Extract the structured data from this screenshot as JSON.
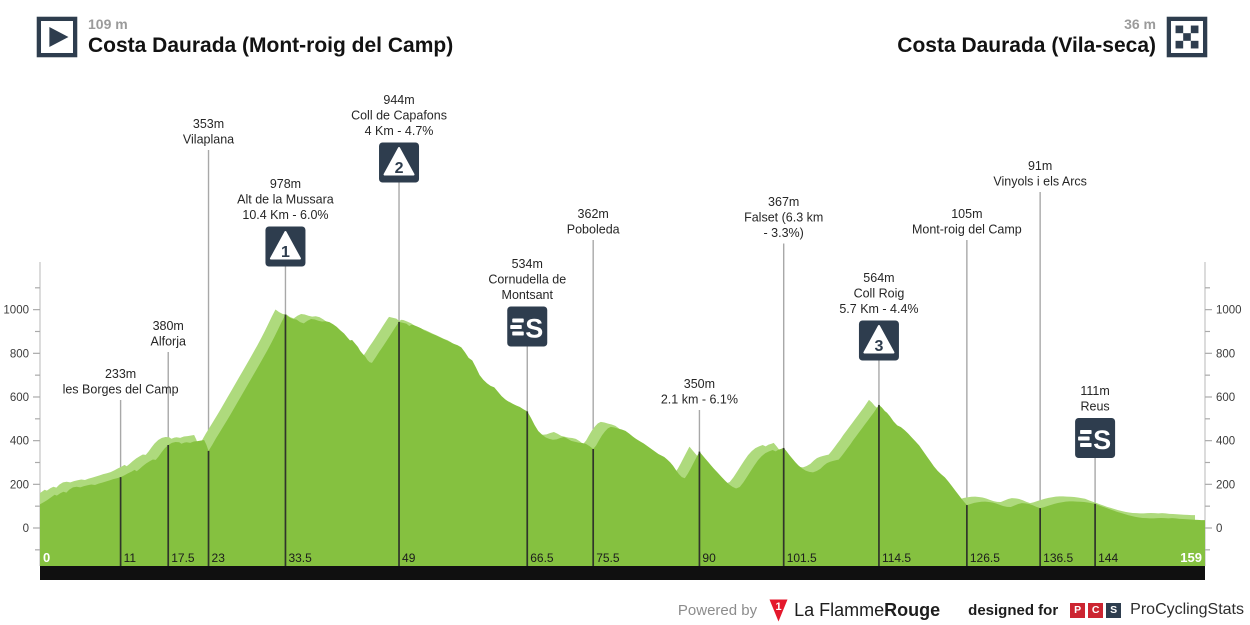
{
  "header": {
    "start": {
      "elevation": "109 m",
      "name": "Costa Daurada (Mont-roig del Camp)"
    },
    "finish": {
      "elevation": "36 m",
      "name": "Costa Daurada (Vila-seca)"
    }
  },
  "footer": {
    "powered_by": "Powered by",
    "lfr_mark": "1",
    "lfr_regular": "La Flamme",
    "lfr_bold": "Rouge",
    "designed_for": "designed for",
    "pcs_letters": [
      "P",
      "C",
      "S"
    ],
    "pcs_name": "ProCyclingStats"
  },
  "colors": {
    "profile_main": "#85c140",
    "profile_light": "#aeda7d",
    "icon_bg": "#2e3d4e",
    "marker_line": "#a8a8a8",
    "marker_line_dark": "#30352a",
    "axis_line": "#c8c8c8",
    "axis_tick": "#aaaaaa",
    "axis_text": "#3c3c3c",
    "label_text": "#262626",
    "base_bar": "#101010",
    "x_label": "#1c1c1c",
    "x_label_emph": "#ffffff",
    "lfr_red": "#e4182c",
    "pcs_red": "#cc2531",
    "pcs_navy": "#2e3d4e"
  },
  "chart_data": {
    "type": "area",
    "title": "Stage elevation profile",
    "x_unit": "km",
    "y_unit": "m",
    "xlim": [
      0,
      159
    ],
    "grid": false,
    "y_ticks": [
      0,
      200,
      400,
      600,
      800,
      1000
    ],
    "x_ticks": [
      {
        "km": 0,
        "label": "0",
        "emph": true
      },
      {
        "km": 11,
        "label": "11"
      },
      {
        "km": 17.5,
        "label": "17.5"
      },
      {
        "km": 23,
        "label": "23"
      },
      {
        "km": 33.5,
        "label": "33.5"
      },
      {
        "km": 49,
        "label": "49"
      },
      {
        "km": 66.5,
        "label": "66.5"
      },
      {
        "km": 75.5,
        "label": "75.5"
      },
      {
        "km": 90,
        "label": "90"
      },
      {
        "km": 101.5,
        "label": "101.5"
      },
      {
        "km": 114.5,
        "label": "114.5"
      },
      {
        "km": 126.5,
        "label": "126.5"
      },
      {
        "km": 136.5,
        "label": "136.5"
      },
      {
        "km": 144,
        "label": "144"
      },
      {
        "km": 159,
        "label": "159",
        "emph": true,
        "align": "right"
      }
    ],
    "markers": [
      {
        "km": 11,
        "elevation": 233,
        "lines": [
          "233m",
          "les Borges del Camp"
        ],
        "icon": null,
        "label_y": 366
      },
      {
        "km": 17.5,
        "elevation": 380,
        "lines": [
          "380m",
          "Alforja"
        ],
        "icon": null,
        "label_y": 318
      },
      {
        "km": 23,
        "elevation": 353,
        "lines": [
          "353m",
          "Vilaplana"
        ],
        "icon": null,
        "label_y": 116
      },
      {
        "km": 33.5,
        "elevation": 978,
        "lines": [
          "978m",
          "Alt de la Mussara",
          "10.4 Km - 6.0%"
        ],
        "icon": "cat1",
        "label_y": 176
      },
      {
        "km": 49,
        "elevation": 944,
        "lines": [
          "944m",
          "Coll de Capafons",
          "4 Km - 4.7%"
        ],
        "icon": "cat2",
        "label_y": 92
      },
      {
        "km": 66.5,
        "elevation": 534,
        "lines": [
          "534m",
          "Cornudella de",
          "Montsant"
        ],
        "icon": "sprint",
        "label_y": 256
      },
      {
        "km": 75.5,
        "elevation": 362,
        "lines": [
          "362m",
          "Poboleda"
        ],
        "icon": null,
        "label_y": 206
      },
      {
        "km": 90,
        "elevation": 350,
        "lines": [
          "350m",
          "2.1 km - 6.1%"
        ],
        "icon": null,
        "label_y": 376
      },
      {
        "km": 101.5,
        "elevation": 367,
        "lines": [
          "367m",
          "Falset (6.3 km",
          "- 3.3%)"
        ],
        "icon": null,
        "label_y": 194
      },
      {
        "km": 114.5,
        "elevation": 564,
        "lines": [
          "564m",
          "Coll Roig",
          "5.7 Km - 4.4%"
        ],
        "icon": "cat3",
        "label_y": 270
      },
      {
        "km": 126.5,
        "elevation": 105,
        "lines": [
          "105m",
          "Mont-roig del Camp"
        ],
        "icon": null,
        "label_y": 206
      },
      {
        "km": 136.5,
        "elevation": 91,
        "lines": [
          "91m",
          "Vinyols i els Arcs"
        ],
        "icon": null,
        "label_y": 158
      },
      {
        "km": 144,
        "elevation": 111,
        "lines": [
          "111m",
          "Reus"
        ],
        "icon": "sprint",
        "label_y": 383
      }
    ],
    "profile": [
      [
        0,
        109
      ],
      [
        0.5,
        118
      ],
      [
        1,
        128
      ],
      [
        1.5,
        140
      ],
      [
        2,
        152
      ],
      [
        2.3,
        148
      ],
      [
        2.8,
        160
      ],
      [
        3.2,
        166
      ],
      [
        3.6,
        162
      ],
      [
        4,
        176
      ],
      [
        4.5,
        186
      ],
      [
        5,
        189
      ],
      [
        5.5,
        186
      ],
      [
        6,
        192
      ],
      [
        6.5,
        196
      ],
      [
        7,
        199
      ],
      [
        7.5,
        197
      ],
      [
        8,
        203
      ],
      [
        8.5,
        208
      ],
      [
        9,
        213
      ],
      [
        9.5,
        218
      ],
      [
        10,
        224
      ],
      [
        10.5,
        228
      ],
      [
        11,
        233
      ],
      [
        11.5,
        241
      ],
      [
        12,
        250
      ],
      [
        12.5,
        258
      ],
      [
        12.9,
        266
      ],
      [
        13.2,
        260
      ],
      [
        13.6,
        271
      ],
      [
        14,
        283
      ],
      [
        14.5,
        296
      ],
      [
        15,
        306
      ],
      [
        15.4,
        314
      ],
      [
        15.8,
        312
      ],
      [
        16.2,
        328
      ],
      [
        16.6,
        347
      ],
      [
        17,
        364
      ],
      [
        17.5,
        380
      ],
      [
        18,
        390
      ],
      [
        18.5,
        394
      ],
      [
        19,
        393
      ],
      [
        19.3,
        386
      ],
      [
        19.7,
        391
      ],
      [
        20,
        393
      ],
      [
        20.5,
        390
      ],
      [
        21,
        396
      ],
      [
        21.5,
        398
      ],
      [
        22,
        401
      ],
      [
        22.4,
        403
      ],
      [
        22.7,
        382
      ],
      [
        23,
        353
      ],
      [
        23.5,
        380
      ],
      [
        24,
        410
      ],
      [
        24.5,
        437
      ],
      [
        25,
        464
      ],
      [
        25.5,
        492
      ],
      [
        26,
        520
      ],
      [
        26.5,
        549
      ],
      [
        27,
        578
      ],
      [
        27.5,
        607
      ],
      [
        28,
        636
      ],
      [
        28.5,
        665
      ],
      [
        29,
        694
      ],
      [
        29.5,
        723
      ],
      [
        30,
        752
      ],
      [
        30.5,
        782
      ],
      [
        31,
        812
      ],
      [
        31.5,
        843
      ],
      [
        32,
        876
      ],
      [
        32.5,
        910
      ],
      [
        33,
        945
      ],
      [
        33.5,
        978
      ],
      [
        34,
        966
      ],
      [
        34.5,
        957
      ],
      [
        35,
        955
      ],
      [
        35.5,
        943
      ],
      [
        36,
        937
      ],
      [
        36.5,
        949
      ],
      [
        37,
        957
      ],
      [
        37.5,
        955
      ],
      [
        38,
        949
      ],
      [
        38.5,
        945
      ],
      [
        39,
        947
      ],
      [
        39.5,
        943
      ],
      [
        40,
        933
      ],
      [
        40.5,
        921
      ],
      [
        41,
        905
      ],
      [
        41.5,
        891
      ],
      [
        42,
        871
      ],
      [
        42.3,
        859
      ],
      [
        42.6,
        861
      ],
      [
        43,
        845
      ],
      [
        43.4,
        829
      ],
      [
        43.7,
        811
      ],
      [
        44,
        799
      ],
      [
        44.4,
        785
      ],
      [
        44.7,
        769
      ],
      [
        45,
        759
      ],
      [
        45.3,
        756
      ],
      [
        45.8,
        781
      ],
      [
        46.3,
        807
      ],
      [
        46.8,
        831
      ],
      [
        47.3,
        857
      ],
      [
        47.8,
        883
      ],
      [
        48.3,
        909
      ],
      [
        48.8,
        935
      ],
      [
        49,
        944
      ],
      [
        49.5,
        940
      ],
      [
        50,
        936
      ],
      [
        50.4,
        925
      ],
      [
        50.7,
        931
      ],
      [
        51,
        929
      ],
      [
        51.5,
        922
      ],
      [
        52,
        915
      ],
      [
        52.5,
        904
      ],
      [
        53,
        897
      ],
      [
        53.5,
        889
      ],
      [
        54,
        883
      ],
      [
        54.5,
        875
      ],
      [
        55,
        867
      ],
      [
        55.5,
        859
      ],
      [
        56,
        851
      ],
      [
        56.5,
        843
      ],
      [
        57,
        837
      ],
      [
        57.5,
        827
      ],
      [
        58,
        805
      ],
      [
        58.5,
        779
      ],
      [
        59,
        767
      ],
      [
        59.5,
        735
      ],
      [
        60,
        700
      ],
      [
        60.5,
        679
      ],
      [
        61,
        663
      ],
      [
        61.5,
        651
      ],
      [
        62,
        644
      ],
      [
        62.5,
        624
      ],
      [
        63,
        604
      ],
      [
        63.5,
        589
      ],
      [
        64,
        577
      ],
      [
        64.5,
        569
      ],
      [
        65,
        561
      ],
      [
        65.5,
        554
      ],
      [
        66,
        543
      ],
      [
        66.5,
        534
      ],
      [
        67,
        505
      ],
      [
        67.5,
        472
      ],
      [
        68,
        444
      ],
      [
        68.5,
        428
      ],
      [
        69,
        415
      ],
      [
        69.5,
        408
      ],
      [
        70,
        404
      ],
      [
        70.5,
        406
      ],
      [
        71,
        412
      ],
      [
        71.5,
        417
      ],
      [
        72,
        409
      ],
      [
        72.5,
        399
      ],
      [
        73,
        395
      ],
      [
        73.5,
        391
      ],
      [
        74,
        389
      ],
      [
        74.5,
        385
      ],
      [
        75,
        375
      ],
      [
        75.5,
        362
      ],
      [
        75.9,
        378
      ],
      [
        76.3,
        402
      ],
      [
        76.7,
        424
      ],
      [
        77.1,
        442
      ],
      [
        77.5,
        456
      ],
      [
        77.9,
        463
      ],
      [
        78.4,
        460
      ],
      [
        78.9,
        455
      ],
      [
        79.4,
        451
      ],
      [
        79.9,
        445
      ],
      [
        80.4,
        433
      ],
      [
        80.9,
        419
      ],
      [
        81.4,
        407
      ],
      [
        81.9,
        397
      ],
      [
        82.4,
        387
      ],
      [
        82.9,
        375
      ],
      [
        83.4,
        363
      ],
      [
        83.9,
        351
      ],
      [
        84.4,
        339
      ],
      [
        84.8,
        332
      ],
      [
        85.2,
        325
      ],
      [
        85.6,
        314
      ],
      [
        86,
        301
      ],
      [
        86.4,
        285
      ],
      [
        86.8,
        265
      ],
      [
        87.2,
        247
      ],
      [
        87.6,
        233
      ],
      [
        88,
        228
      ],
      [
        88.4,
        248
      ],
      [
        88.8,
        272
      ],
      [
        89.2,
        298
      ],
      [
        89.6,
        324
      ],
      [
        90,
        350
      ],
      [
        90.4,
        334
      ],
      [
        90.8,
        318
      ],
      [
        91.2,
        302
      ],
      [
        91.6,
        286
      ],
      [
        92,
        271
      ],
      [
        92.5,
        253
      ],
      [
        93,
        235
      ],
      [
        93.5,
        217
      ],
      [
        94,
        201
      ],
      [
        94.5,
        189
      ],
      [
        95,
        181
      ],
      [
        95.5,
        188
      ],
      [
        96,
        209
      ],
      [
        96.5,
        235
      ],
      [
        97,
        261
      ],
      [
        97.5,
        287
      ],
      [
        98,
        311
      ],
      [
        98.5,
        329
      ],
      [
        99,
        343
      ],
      [
        99.5,
        351
      ],
      [
        100,
        357
      ],
      [
        100.4,
        351
      ],
      [
        100.8,
        359
      ],
      [
        101.2,
        363
      ],
      [
        101.5,
        367
      ],
      [
        101.9,
        351
      ],
      [
        102.3,
        333
      ],
      [
        102.7,
        317
      ],
      [
        103.1,
        301
      ],
      [
        103.5,
        287
      ],
      [
        104,
        273
      ],
      [
        104.5,
        263
      ],
      [
        105,
        257
      ],
      [
        105.5,
        255
      ],
      [
        106,
        261
      ],
      [
        106.5,
        271
      ],
      [
        107,
        287
      ],
      [
        107.4,
        297
      ],
      [
        107.8,
        303
      ],
      [
        108.2,
        307
      ],
      [
        108.6,
        310
      ],
      [
        109,
        313
      ],
      [
        109.4,
        329
      ],
      [
        109.8,
        347
      ],
      [
        110.2,
        365
      ],
      [
        110.6,
        383
      ],
      [
        111,
        403
      ],
      [
        111.4,
        421
      ],
      [
        111.8,
        439
      ],
      [
        112.2,
        457
      ],
      [
        112.6,
        475
      ],
      [
        113,
        493
      ],
      [
        113.4,
        511
      ],
      [
        113.8,
        529
      ],
      [
        114.2,
        549
      ],
      [
        114.5,
        564
      ],
      [
        114.9,
        552
      ],
      [
        115.3,
        536
      ],
      [
        115.6,
        528
      ],
      [
        116,
        512
      ],
      [
        116.5,
        488
      ],
      [
        117,
        470
      ],
      [
        117.5,
        462
      ],
      [
        118,
        448
      ],
      [
        118.5,
        432
      ],
      [
        119,
        414
      ],
      [
        119.5,
        396
      ],
      [
        120,
        378
      ],
      [
        120.5,
        354
      ],
      [
        121,
        330
      ],
      [
        121.5,
        306
      ],
      [
        122,
        282
      ],
      [
        122.5,
        262
      ],
      [
        123,
        246
      ],
      [
        123.5,
        232
      ],
      [
        124,
        212
      ],
      [
        124.5,
        190
      ],
      [
        125,
        168
      ],
      [
        125.5,
        146
      ],
      [
        126,
        124
      ],
      [
        126.5,
        105
      ],
      [
        127,
        110
      ],
      [
        127.5,
        115
      ],
      [
        128,
        118
      ],
      [
        128.5,
        120
      ],
      [
        129,
        121
      ],
      [
        129.5,
        119
      ],
      [
        130,
        117
      ],
      [
        130.5,
        112
      ],
      [
        131,
        106
      ],
      [
        131.5,
        100
      ],
      [
        132,
        97
      ],
      [
        132.5,
        96
      ],
      [
        133,
        103
      ],
      [
        133.5,
        110
      ],
      [
        134,
        114
      ],
      [
        134.5,
        113
      ],
      [
        135,
        110
      ],
      [
        135.5,
        104
      ],
      [
        136,
        97
      ],
      [
        136.5,
        91
      ],
      [
        137,
        95
      ],
      [
        137.5,
        101
      ],
      [
        138,
        106
      ],
      [
        138.5,
        111
      ],
      [
        139,
        115
      ],
      [
        139.5,
        118
      ],
      [
        140,
        121
      ],
      [
        140.5,
        122
      ],
      [
        141,
        122
      ],
      [
        141.5,
        121
      ],
      [
        142,
        120
      ],
      [
        142.5,
        119
      ],
      [
        143,
        117
      ],
      [
        143.5,
        114
      ],
      [
        144,
        111
      ],
      [
        144.5,
        104
      ],
      [
        145,
        98
      ],
      [
        145.5,
        92
      ],
      [
        146,
        86
      ],
      [
        146.5,
        80
      ],
      [
        147,
        74
      ],
      [
        147.5,
        69
      ],
      [
        148,
        64
      ],
      [
        148.5,
        59
      ],
      [
        149,
        55
      ],
      [
        149.5,
        51
      ],
      [
        150,
        48
      ],
      [
        150.5,
        46
      ],
      [
        151,
        45
      ],
      [
        151.5,
        44
      ],
      [
        152,
        44
      ],
      [
        152.5,
        45
      ],
      [
        153,
        46
      ],
      [
        153.5,
        45
      ],
      [
        154,
        44
      ],
      [
        154.5,
        45
      ],
      [
        155,
        44
      ],
      [
        155.5,
        42
      ],
      [
        156,
        41
      ],
      [
        156.5,
        40
      ],
      [
        157,
        39
      ],
      [
        157.5,
        38
      ],
      [
        158,
        37
      ],
      [
        158.5,
        36
      ],
      [
        159,
        36
      ]
    ]
  }
}
